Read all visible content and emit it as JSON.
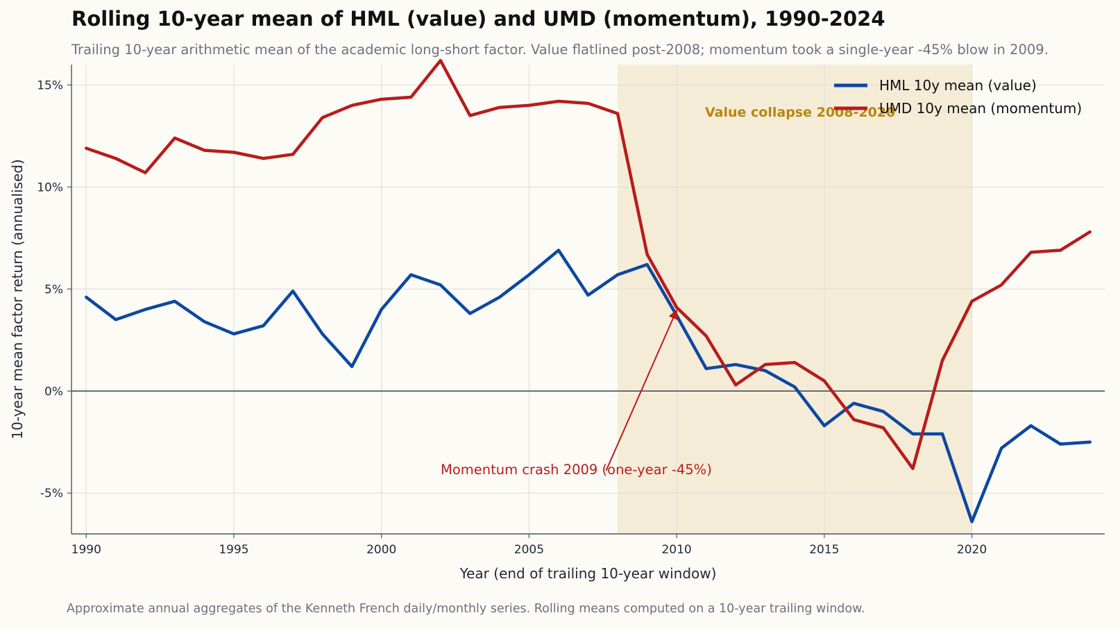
{
  "title": "Rolling 10-year mean of HML (value) and UMD (momentum), 1990-2024",
  "subtitle": "Trailing 10-year arithmetic mean of the academic long-short factor. Value flatlined post-2008; momentum took a single-year -45% blow in 2009.",
  "footnote": "Approximate annual aggregates of the Kenneth French daily/monthly series. Rolling means computed on a 10-year trailing window.",
  "colors": {
    "hml": "#0d47a1",
    "umd": "#b71c1c",
    "band": "#f5ecd8",
    "band_text": "#b8860b",
    "background": "#fcfbf6"
  },
  "chart_data": {
    "type": "line",
    "xlabel": "Year (end of trailing 10-year window)",
    "ylabel": "10-year mean factor return (annualised)",
    "xlim": [
      1989.5,
      2024.5
    ],
    "ylim": [
      -7,
      16
    ],
    "x_ticks": [
      1990,
      1995,
      2000,
      2005,
      2010,
      2015,
      2020
    ],
    "y_ticks": [
      -5,
      0,
      5,
      10,
      15
    ],
    "y_tick_labels": [
      "-5%",
      "0%",
      "5%",
      "10%",
      "15%"
    ],
    "grid": true,
    "legend_position": "top-right",
    "x": [
      1990,
      1991,
      1992,
      1993,
      1994,
      1995,
      1996,
      1997,
      1998,
      1999,
      2000,
      2001,
      2002,
      2003,
      2004,
      2005,
      2006,
      2007,
      2008,
      2009,
      2010,
      2011,
      2012,
      2013,
      2014,
      2015,
      2016,
      2017,
      2018,
      2019,
      2020,
      2021,
      2022,
      2023,
      2024
    ],
    "series": [
      {
        "name": "HML 10y mean (value)",
        "values": [
          4.6,
          3.5,
          4.0,
          4.4,
          3.4,
          2.8,
          3.2,
          4.9,
          2.8,
          1.2,
          4.0,
          5.7,
          5.2,
          3.8,
          4.6,
          5.7,
          6.9,
          4.7,
          5.7,
          6.2,
          3.7,
          1.1,
          1.3,
          1.0,
          0.2,
          -1.7,
          -0.6,
          -1.0,
          -2.1,
          -2.1,
          -6.4,
          -2.8,
          -1.7,
          -2.6,
          -2.5
        ]
      },
      {
        "name": "UMD 10y mean (momentum)",
        "values": [
          11.9,
          11.4,
          10.7,
          12.4,
          11.8,
          11.7,
          11.4,
          11.6,
          13.4,
          14.0,
          14.3,
          14.4,
          16.2,
          13.5,
          13.9,
          14.0,
          14.2,
          14.1,
          13.6,
          6.7,
          4.1,
          2.7,
          0.3,
          1.3,
          1.4,
          0.5,
          -1.4,
          -1.8,
          -3.8,
          1.5,
          4.4,
          5.2,
          6.8,
          6.9,
          7.8
        ]
      }
    ],
    "annotations": [
      {
        "type": "band",
        "x_start": 2008,
        "x_end": 2020,
        "text": "Value collapse 2008-2020"
      },
      {
        "type": "arrow",
        "text": "Momentum crash 2009 (one-year -45%)",
        "text_x": 2007,
        "text_y": -4.0,
        "arrow_to_x": 2010,
        "arrow_to_y": 4.1
      }
    ]
  }
}
